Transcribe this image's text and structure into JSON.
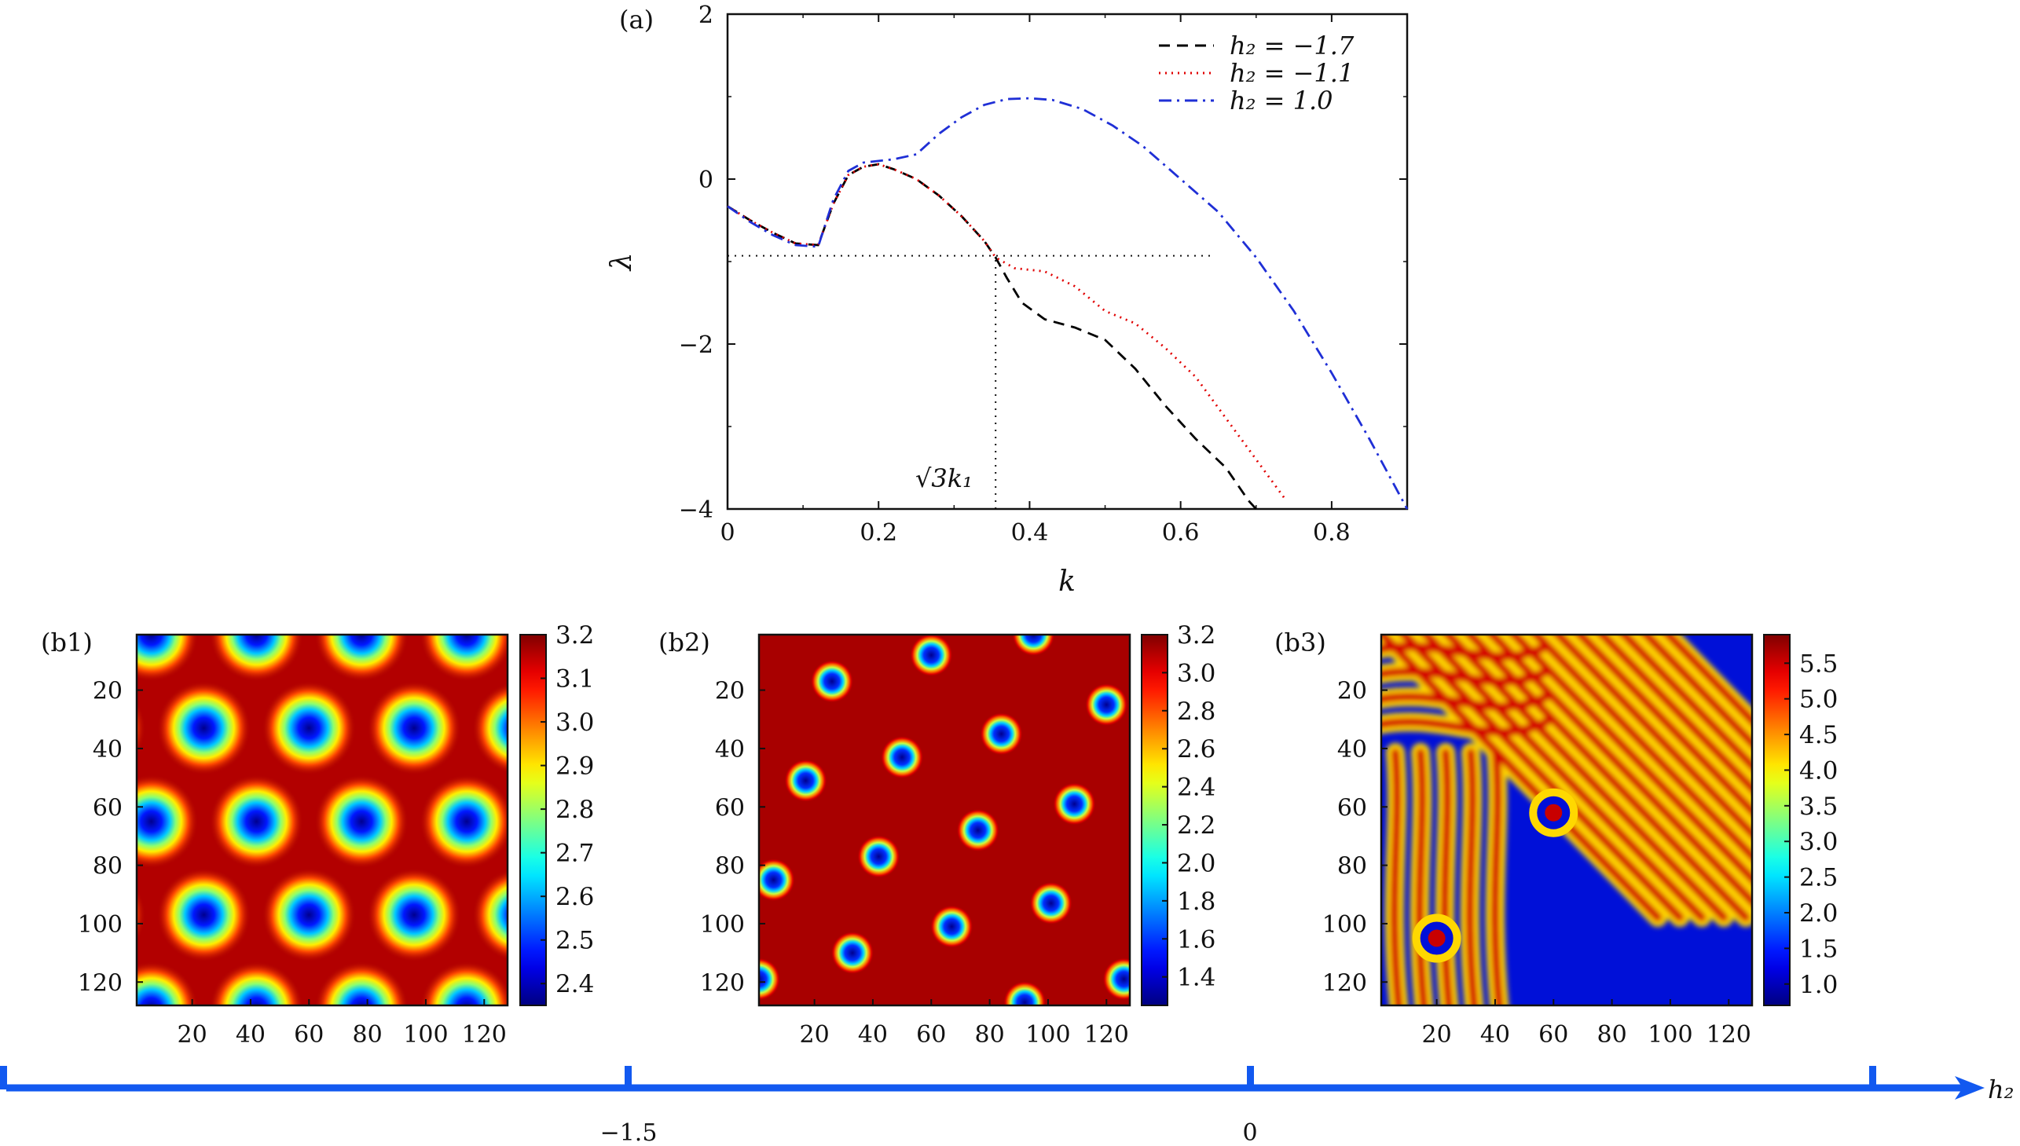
{
  "chart_data": [
    {
      "type": "line",
      "panel_label": "(a)",
      "xlabel": "k",
      "ylabel": "λ",
      "xlim": [
        0,
        0.9
      ],
      "ylim": [
        -4,
        2
      ],
      "xticks": [
        "0",
        "0.2",
        "0.4",
        "0.6",
        "0.8"
      ],
      "yticks": [
        "2",
        "0",
        "−2",
        "−4"
      ],
      "legend_position": "top-right",
      "legend": [
        "h₂ = −1.7",
        "h₂ = −1.1",
        "h₂ = 1.0"
      ],
      "series": [
        {
          "name": "h₂ = −1.7",
          "color": "#000000",
          "dash": "dashed",
          "x": [
            0.0,
            0.03,
            0.06,
            0.09,
            0.12,
            0.14,
            0.16,
            0.18,
            0.2,
            0.22,
            0.25,
            0.28,
            0.31,
            0.34,
            0.355,
            0.37,
            0.39,
            0.42,
            0.46,
            0.5,
            0.54,
            0.58,
            0.62,
            0.66,
            0.69,
            0.7
          ],
          "y": [
            -0.33,
            -0.5,
            -0.65,
            -0.78,
            -0.8,
            -0.3,
            0.05,
            0.15,
            0.18,
            0.12,
            0.0,
            -0.2,
            -0.45,
            -0.75,
            -0.95,
            -1.2,
            -1.5,
            -1.7,
            -1.8,
            -1.95,
            -2.3,
            -2.75,
            -3.15,
            -3.5,
            -3.9,
            -4.0
          ]
        },
        {
          "name": "h₂ = −1.1",
          "color": "#e00000",
          "dash": "dotted",
          "x": [
            0.0,
            0.03,
            0.06,
            0.09,
            0.12,
            0.14,
            0.16,
            0.18,
            0.2,
            0.22,
            0.25,
            0.28,
            0.31,
            0.34,
            0.355,
            0.38,
            0.42,
            0.46,
            0.5,
            0.54,
            0.58,
            0.62,
            0.66,
            0.7,
            0.74
          ],
          "y": [
            -0.33,
            -0.5,
            -0.65,
            -0.78,
            -0.8,
            -0.3,
            0.05,
            0.15,
            0.18,
            0.12,
            0.0,
            -0.2,
            -0.45,
            -0.75,
            -0.95,
            -1.08,
            -1.12,
            -1.3,
            -1.6,
            -1.75,
            -2.05,
            -2.4,
            -2.9,
            -3.4,
            -3.9
          ]
        },
        {
          "name": "h₂ = 1.0",
          "color": "#1f2fd6",
          "dash": "dashdot",
          "x": [
            0.0,
            0.03,
            0.06,
            0.09,
            0.12,
            0.14,
            0.16,
            0.18,
            0.2,
            0.22,
            0.25,
            0.28,
            0.31,
            0.34,
            0.37,
            0.4,
            0.43,
            0.47,
            0.51,
            0.55,
            0.6,
            0.65,
            0.7,
            0.75,
            0.8,
            0.85,
            0.9
          ],
          "y": [
            -0.33,
            -0.52,
            -0.68,
            -0.8,
            -0.82,
            -0.25,
            0.1,
            0.2,
            0.22,
            0.24,
            0.3,
            0.55,
            0.75,
            0.9,
            0.97,
            0.98,
            0.96,
            0.85,
            0.65,
            0.4,
            0.0,
            -0.4,
            -0.95,
            -1.6,
            -2.35,
            -3.15,
            -4.0
          ]
        }
      ],
      "annotations": [
        {
          "type": "hline",
          "y": -0.93,
          "x_from": 0.0,
          "x_to": 0.64,
          "style": "dotted"
        },
        {
          "type": "vline",
          "x": 0.355,
          "y_from": -4.0,
          "y_to": -0.93,
          "style": "dotted"
        },
        {
          "type": "text",
          "text": "√3k₁",
          "x": 0.3,
          "y": -3.6
        }
      ]
    },
    {
      "type": "heatmap",
      "panel_label": "(b1)",
      "xticks": [
        "20",
        "40",
        "60",
        "80",
        "100",
        "120"
      ],
      "yticks": [
        "20",
        "40",
        "60",
        "80",
        "100",
        "120"
      ],
      "xlim": [
        1,
        128
      ],
      "ylim": [
        1,
        128
      ],
      "colormap": "jet",
      "colorbar_range": [
        2.35,
        3.2
      ],
      "colorbar_ticks": [
        "3.2",
        "3.1",
        "3.0",
        "2.9",
        "2.8",
        "2.7",
        "2.6",
        "2.5",
        "2.4"
      ],
      "pattern": "hexagonal spots (low values) on high background",
      "spots": [
        [
          6,
          1
        ],
        [
          42,
          1
        ],
        [
          78,
          1
        ],
        [
          114,
          1
        ],
        [
          -12,
          33
        ],
        [
          24,
          33
        ],
        [
          60,
          33
        ],
        [
          96,
          33
        ],
        [
          132,
          33
        ],
        [
          6,
          65
        ],
        [
          42,
          65
        ],
        [
          78,
          65
        ],
        [
          114,
          65
        ],
        [
          -12,
          97
        ],
        [
          24,
          97
        ],
        [
          60,
          97
        ],
        [
          96,
          97
        ],
        [
          132,
          97
        ],
        [
          6,
          129
        ],
        [
          42,
          129
        ],
        [
          78,
          129
        ],
        [
          114,
          129
        ]
      ]
    },
    {
      "type": "heatmap",
      "panel_label": "(b2)",
      "xticks": [
        "20",
        "40",
        "60",
        "80",
        "100",
        "120"
      ],
      "yticks": [
        "20",
        "40",
        "60",
        "80",
        "100",
        "120"
      ],
      "xlim": [
        1,
        128
      ],
      "ylim": [
        1,
        128
      ],
      "colormap": "jet",
      "colorbar_range": [
        1.25,
        3.2
      ],
      "colorbar_ticks": [
        "3.2",
        "3.0",
        "2.8",
        "2.6",
        "2.4",
        "2.2",
        "2.0",
        "1.8",
        "1.6",
        "1.4"
      ],
      "pattern": "isolated spots (low values) on high background",
      "spots": [
        [
          60,
          8
        ],
        [
          95,
          1
        ],
        [
          26,
          17
        ],
        [
          120,
          25
        ],
        [
          84,
          35
        ],
        [
          50,
          43
        ],
        [
          17,
          51
        ],
        [
          109,
          59
        ],
        [
          76,
          68
        ],
        [
          42,
          77
        ],
        [
          6,
          85
        ],
        [
          101,
          93
        ],
        [
          67,
          101
        ],
        [
          33,
          110
        ],
        [
          1,
          119
        ],
        [
          126,
          119
        ],
        [
          92,
          127
        ]
      ]
    },
    {
      "type": "heatmap",
      "panel_label": "(b3)",
      "xticks": [
        "20",
        "40",
        "60",
        "80",
        "100",
        "120"
      ],
      "yticks": [
        "20",
        "40",
        "60",
        "80",
        "100",
        "120"
      ],
      "xlim": [
        1,
        128
      ],
      "ylim": [
        1,
        128
      ],
      "colormap": "jet",
      "colorbar_range": [
        0.7,
        5.9
      ],
      "colorbar_ticks": [
        "5.5",
        "5.0",
        "4.5",
        "4.0",
        "3.5",
        "3.0",
        "2.5",
        "2.0",
        "1.5",
        "1.0"
      ],
      "pattern": "labyrinth / diagonal stripes"
    }
  ],
  "h2_axis": {
    "label": "h₂",
    "ticks": [
      "−1.5",
      "0"
    ],
    "color": "#1259f0"
  }
}
